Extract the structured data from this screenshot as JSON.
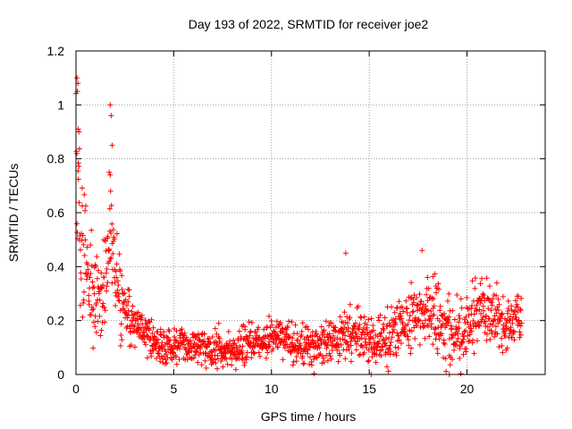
{
  "colors": {
    "series": "#ff0000",
    "grid": "#a0a0a0",
    "axis": "#000000",
    "background": "#ffffff"
  },
  "chart_data": {
    "type": "scatter",
    "marker": "plus",
    "title": "Day 193 of 2022, SRMTID for receiver joe2",
    "xlabel": "GPS time / hours",
    "ylabel": "SRMTID / TECUs",
    "xlim": [
      0,
      24
    ],
    "ylim": [
      0,
      1.2
    ],
    "xticks": [
      0,
      5,
      10,
      15,
      20
    ],
    "yticks": [
      0,
      0.2,
      0.4,
      0.6,
      0.8,
      1,
      1.2
    ],
    "xtick_labels": [
      "0",
      "5",
      "10",
      "15",
      "20"
    ],
    "ytick_labels": [
      "0",
      "0.2",
      "0.4",
      "0.6",
      "0.8",
      "1",
      "1.2"
    ],
    "grid": true,
    "series": [
      {
        "name": "SRMTID",
        "trend": {
          "x": [
            0,
            0.1,
            0.3,
            0.6,
            1.0,
            1.5,
            1.8,
            2.2,
            2.8,
            3.5,
            4.2,
            5.0,
            6.0,
            7.0,
            8.0,
            9.0,
            10.0,
            11.0,
            12.0,
            13.0,
            14.0,
            15.0,
            16.0,
            17.0,
            18.0,
            19.0,
            20.0,
            21.0,
            22.0,
            22.8
          ],
          "y": [
            0.7,
            0.65,
            0.5,
            0.35,
            0.25,
            0.35,
            0.55,
            0.3,
            0.2,
            0.15,
            0.1,
            0.1,
            0.11,
            0.1,
            0.09,
            0.12,
            0.14,
            0.12,
            0.1,
            0.12,
            0.15,
            0.12,
            0.15,
            0.2,
            0.25,
            0.15,
            0.18,
            0.25,
            0.18,
            0.2
          ]
        },
        "spread": {
          "x": [
            0,
            0.5,
            1.0,
            2.0,
            3.0,
            4.0,
            10.0,
            14.0,
            16.0,
            18.0,
            21.0,
            22.8
          ],
          "y": [
            0.25,
            0.18,
            0.12,
            0.12,
            0.08,
            0.05,
            0.05,
            0.07,
            0.08,
            0.1,
            0.1,
            0.08
          ]
        },
        "x_range": [
          0,
          22.8
        ],
        "count": 1500,
        "outliers": {
          "x": [
            0.05,
            0.07,
            0.1,
            0.12,
            0.15,
            1.75,
            1.8,
            1.85,
            1.7,
            1.75,
            13.8,
            17.7,
            15.1,
            19.1
          ],
          "y": [
            1.1,
            1.05,
            1.08,
            0.91,
            0.9,
            1.0,
            0.96,
            0.85,
            0.75,
            0.74,
            0.45,
            0.46,
            0.0,
            0.0
          ]
        }
      }
    ]
  }
}
